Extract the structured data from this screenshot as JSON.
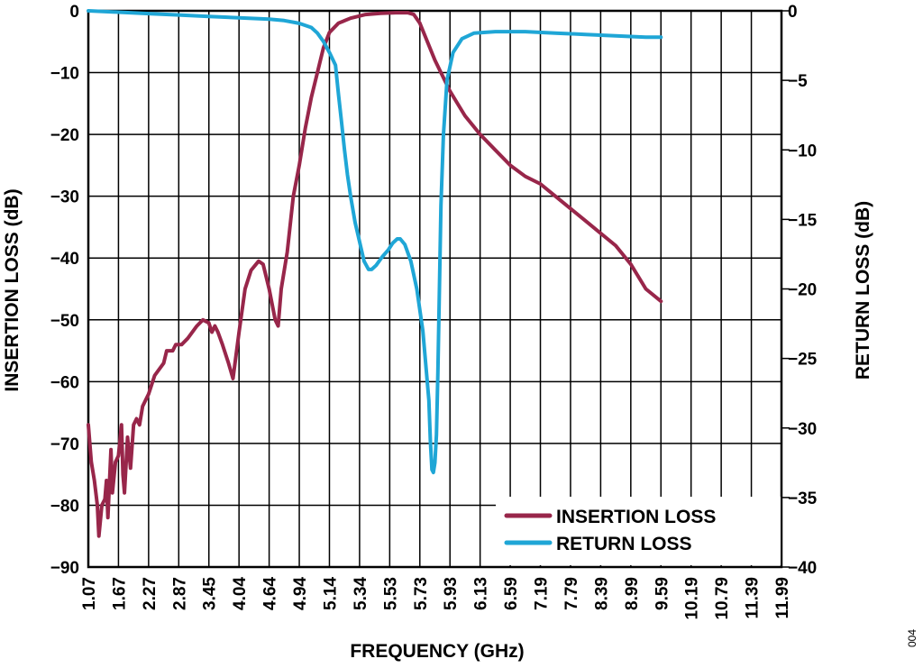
{
  "chart_data": {
    "type": "line",
    "xlabel": "FREQUENCY (GHz)",
    "ylabel_left": "INSERTION LOSS (dB)",
    "ylabel_right": "RETURN LOSS (dB)",
    "x_ticks": [
      "1.07",
      "1.67",
      "2.27",
      "2.87",
      "3.45",
      "4.04",
      "4.64",
      "4.94",
      "5.14",
      "5.34",
      "5.53",
      "5.73",
      "5.93",
      "6.13",
      "6.59",
      "7.19",
      "7.79",
      "8.39",
      "8.99",
      "9.59",
      "10.19",
      "10.79",
      "11.39",
      "11.99"
    ],
    "y_left_ticks": [
      0,
      -10,
      -20,
      -30,
      -40,
      -50,
      -60,
      -70,
      -80,
      -90
    ],
    "y_right_ticks": [
      0,
      -5,
      -10,
      -15,
      -20,
      -25,
      -30,
      -35,
      -40
    ],
    "y_left_range": [
      -90,
      0
    ],
    "y_right_range": [
      -40,
      0
    ],
    "grid": true,
    "legend_position": "bottom-right",
    "series": [
      {
        "name": "INSERTION LOSS",
        "axis": "left",
        "color": "#98264a",
        "points": [
          [
            0.0,
            -67
          ],
          [
            0.1,
            -73
          ],
          [
            0.2,
            -76
          ],
          [
            0.3,
            -80
          ],
          [
            0.35,
            -85
          ],
          [
            0.45,
            -80
          ],
          [
            0.55,
            -79
          ],
          [
            0.6,
            -76
          ],
          [
            0.65,
            -82
          ],
          [
            0.75,
            -71
          ],
          [
            0.8,
            -78
          ],
          [
            0.9,
            -73
          ],
          [
            1.0,
            -72
          ],
          [
            1.1,
            -67
          ],
          [
            1.15,
            -75
          ],
          [
            1.2,
            -78
          ],
          [
            1.3,
            -69
          ],
          [
            1.4,
            -74
          ],
          [
            1.5,
            -67
          ],
          [
            1.6,
            -66
          ],
          [
            1.7,
            -67
          ],
          [
            1.8,
            -64
          ],
          [
            2.0,
            -62
          ],
          [
            2.2,
            -59
          ],
          [
            2.5,
            -57
          ],
          [
            2.6,
            -55
          ],
          [
            2.8,
            -55
          ],
          [
            2.9,
            -54
          ],
          [
            3.1,
            -54
          ],
          [
            3.3,
            -53
          ],
          [
            3.6,
            -51
          ],
          [
            3.8,
            -50
          ],
          [
            4.0,
            -50.5
          ],
          [
            4.1,
            -52
          ],
          [
            4.2,
            -51
          ],
          [
            4.3,
            -52
          ],
          [
            4.45,
            -54
          ],
          [
            4.65,
            -57
          ],
          [
            4.8,
            -59.5
          ],
          [
            5.0,
            -52
          ],
          [
            5.2,
            -45
          ],
          [
            5.4,
            -42
          ],
          [
            5.65,
            -40.5
          ],
          [
            5.8,
            -41
          ],
          [
            6.0,
            -45
          ],
          [
            6.2,
            -50
          ],
          [
            6.3,
            -51
          ],
          [
            6.4,
            -45
          ],
          [
            6.6,
            -39
          ],
          [
            6.8,
            -30
          ],
          [
            7.0,
            -25
          ],
          [
            7.2,
            -19
          ],
          [
            7.4,
            -14
          ],
          [
            7.6,
            -10
          ],
          [
            7.8,
            -6
          ],
          [
            8.0,
            -3.5
          ],
          [
            8.3,
            -2
          ],
          [
            8.7,
            -1.2
          ],
          [
            9.2,
            -0.6
          ],
          [
            9.7,
            -0.4
          ],
          [
            10.2,
            -0.3
          ],
          [
            10.6,
            -0.3
          ],
          [
            10.8,
            -0.6
          ],
          [
            11.0,
            -2
          ],
          [
            11.5,
            -8
          ],
          [
            12.0,
            -13
          ],
          [
            12.5,
            -17
          ],
          [
            13.0,
            -20
          ],
          [
            13.5,
            -22.5
          ],
          [
            14.0,
            -25
          ],
          [
            14.5,
            -26.8
          ],
          [
            15.0,
            -28
          ],
          [
            15.5,
            -30
          ],
          [
            16.0,
            -32
          ],
          [
            16.5,
            -34
          ],
          [
            17.0,
            -36
          ],
          [
            17.5,
            -38
          ],
          [
            18.0,
            -41
          ],
          [
            18.5,
            -45
          ],
          [
            19.0,
            -47
          ]
        ]
      },
      {
        "name": "RETURN LOSS",
        "axis": "right",
        "color": "#1fa6d6",
        "points": [
          [
            0.0,
            0.0
          ],
          [
            1.0,
            -0.1
          ],
          [
            2.0,
            -0.2
          ],
          [
            3.0,
            -0.3
          ],
          [
            4.0,
            -0.4
          ],
          [
            5.0,
            -0.5
          ],
          [
            6.0,
            -0.6
          ],
          [
            6.5,
            -0.7
          ],
          [
            7.0,
            -0.9
          ],
          [
            7.4,
            -1.2
          ],
          [
            7.6,
            -1.6
          ],
          [
            7.8,
            -2.2
          ],
          [
            8.0,
            -3.0
          ],
          [
            8.2,
            -3.9
          ],
          [
            8.3,
            -6
          ],
          [
            8.4,
            -8
          ],
          [
            8.5,
            -10
          ],
          [
            8.6,
            -11.8
          ],
          [
            8.7,
            -13.3
          ],
          [
            8.85,
            -15.2
          ],
          [
            9.0,
            -16.6
          ],
          [
            9.15,
            -18
          ],
          [
            9.3,
            -18.6
          ],
          [
            9.4,
            -18.6
          ],
          [
            9.55,
            -18.3
          ],
          [
            9.75,
            -17.7
          ],
          [
            9.95,
            -17.2
          ],
          [
            10.1,
            -16.7
          ],
          [
            10.25,
            -16.4
          ],
          [
            10.35,
            -16.4
          ],
          [
            10.5,
            -16.8
          ],
          [
            10.7,
            -18
          ],
          [
            10.9,
            -20
          ],
          [
            11.1,
            -23
          ],
          [
            11.3,
            -28
          ],
          [
            11.35,
            -31
          ],
          [
            11.4,
            -33
          ],
          [
            11.45,
            -33.2
          ],
          [
            11.5,
            -32.5
          ],
          [
            11.55,
            -30.5
          ],
          [
            11.6,
            -26
          ],
          [
            11.65,
            -20
          ],
          [
            11.7,
            -14
          ],
          [
            11.78,
            -9
          ],
          [
            11.9,
            -5
          ],
          [
            12.1,
            -3
          ],
          [
            12.4,
            -2
          ],
          [
            12.8,
            -1.6
          ],
          [
            13.5,
            -1.5
          ],
          [
            14.5,
            -1.5
          ],
          [
            15.5,
            -1.6
          ],
          [
            16.5,
            -1.7
          ],
          [
            17.5,
            -1.8
          ],
          [
            18.5,
            -1.9
          ],
          [
            19.0,
            -1.9
          ]
        ]
      }
    ],
    "legend": [
      {
        "label": "INSERTION LOSS",
        "color": "#98264a"
      },
      {
        "label": "RETURN LOSS",
        "color": "#1fa6d6"
      }
    ]
  },
  "figure_number": "004"
}
